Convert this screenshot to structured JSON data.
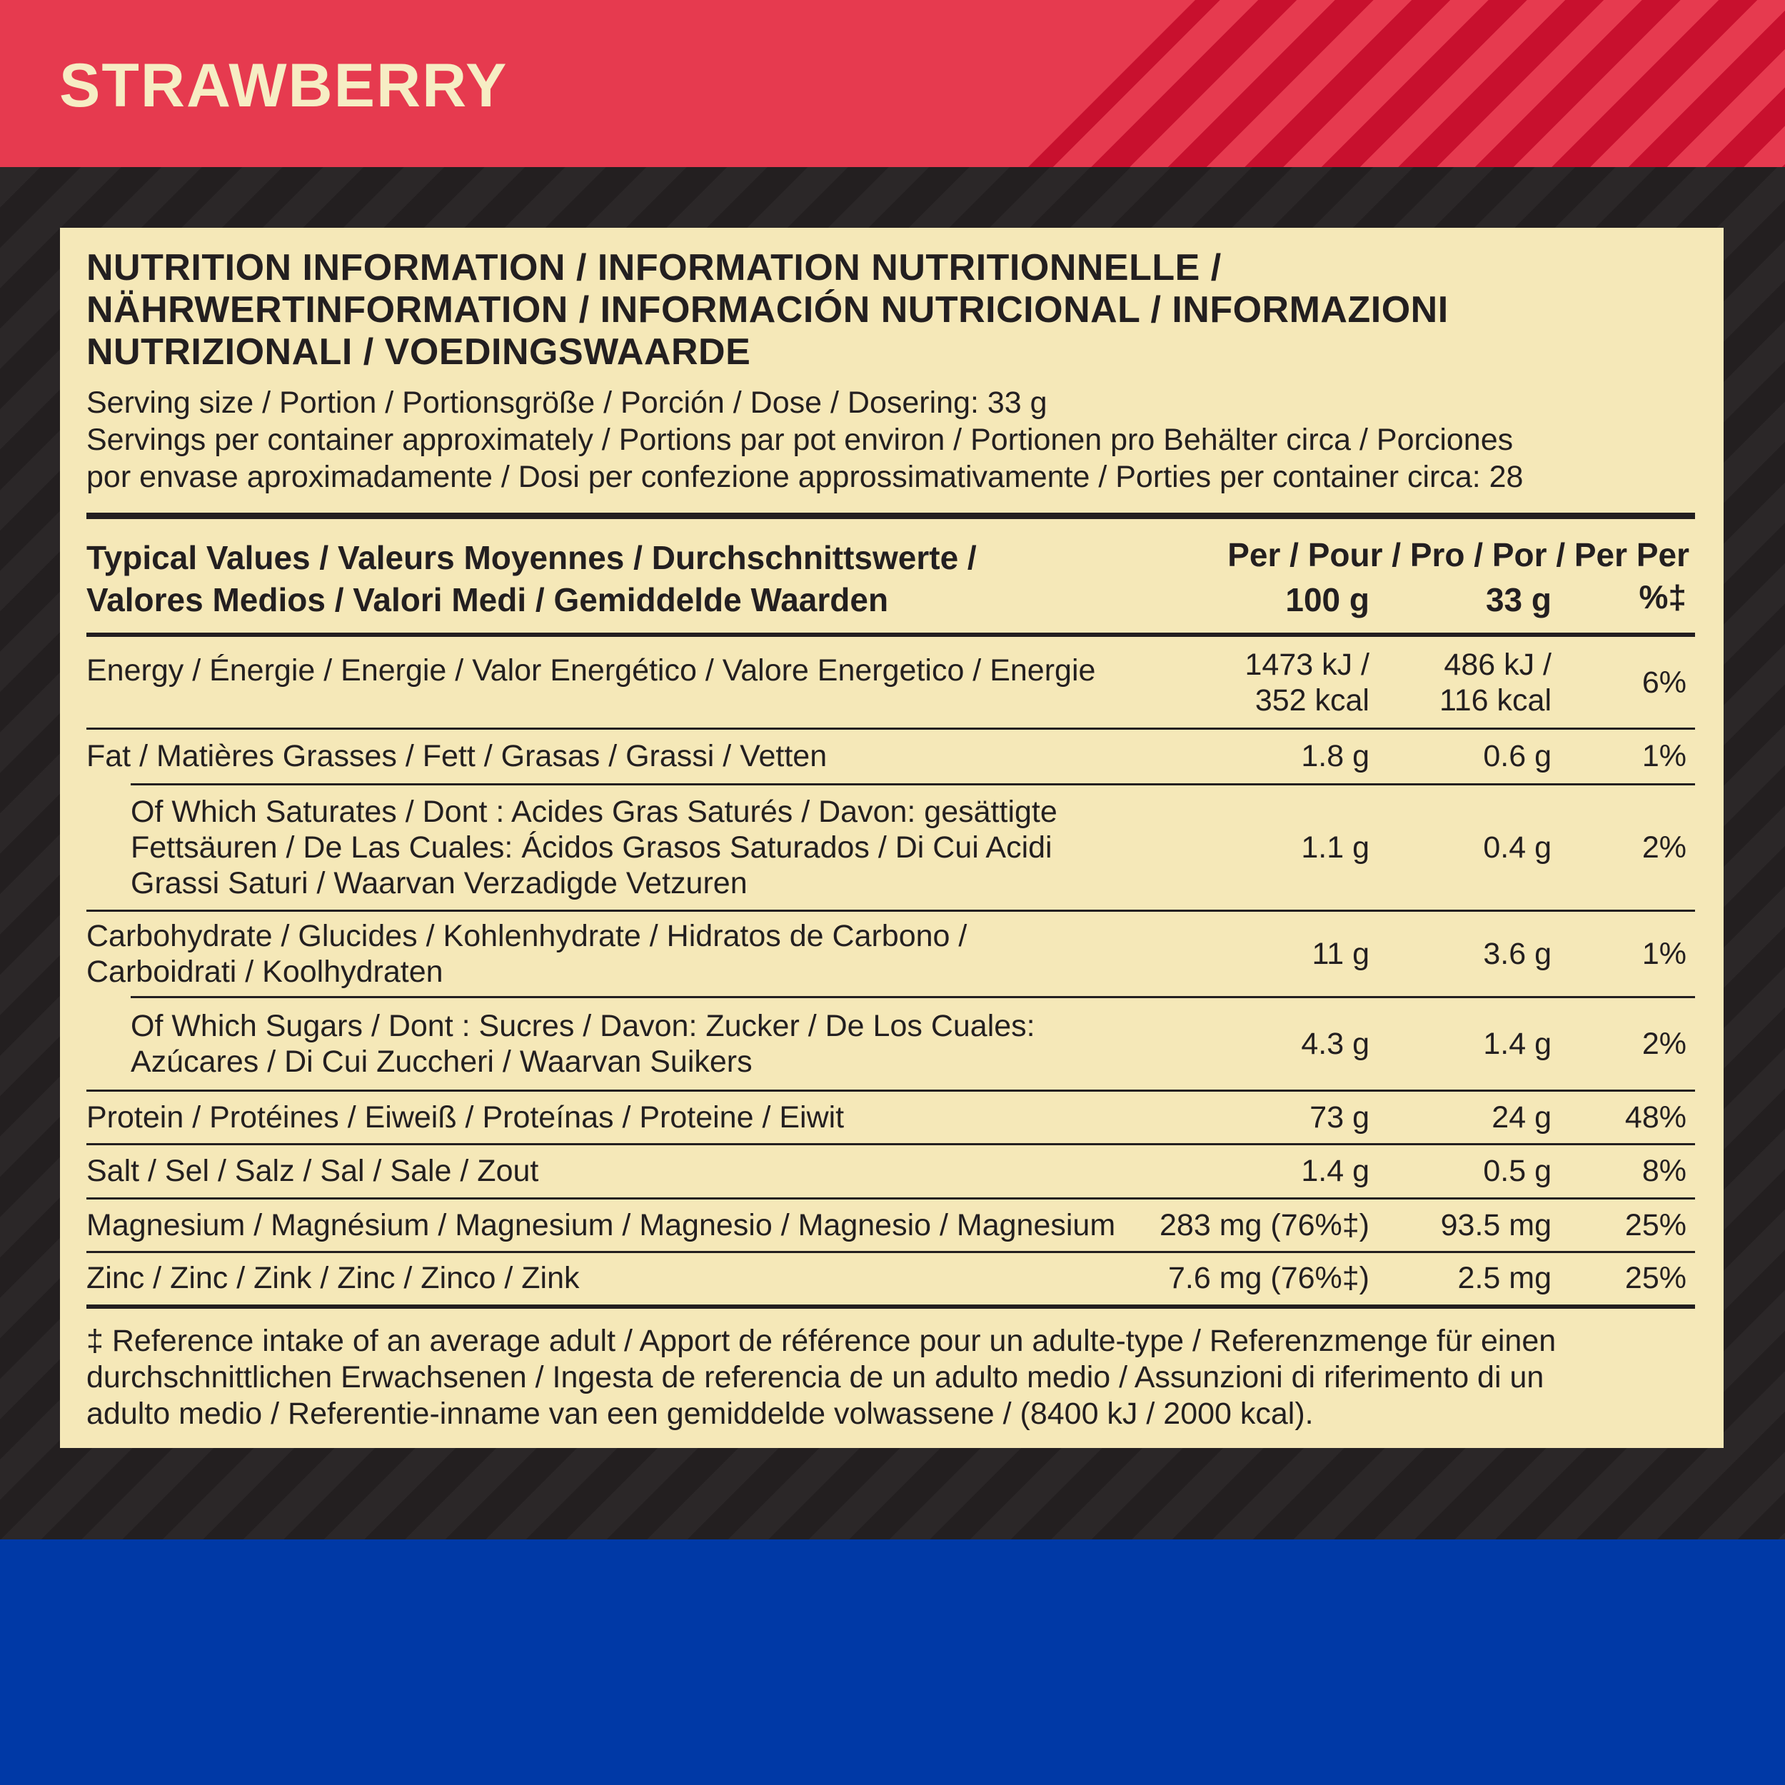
{
  "header": {
    "title": "STRAWBERRY"
  },
  "panel": {
    "heading": [
      "NUTRITION INFORMATION / INFORMATION NUTRITIONNELLE /",
      "NÄHRWERTINFORMATION / INFORMACIÓN NUTRICIONAL / INFORMAZIONI",
      "NUTRIZIONALI / VOEDINGSWAARDE"
    ],
    "serving": [
      "Serving size / Portion / Portionsgröße / Porción / Dose / Dosering: 33 g",
      "Servings per container approximately / Portions par pot environ / Portionen pro Behälter circa / Porciones",
      "por envase aproximadamente / Dosi per confezione approssimativamente / Porties per container circa: 28"
    ],
    "table": {
      "header": {
        "label": [
          "Typical Values / Valeurs Moyennes / Durchschnittswerte /",
          "Valores Medios / Valori Medi / Gemiddelde Waarden"
        ],
        "columns_top": "Per / Pour / Pro / Por / Per Per",
        "col1": "100 g",
        "col2": "33 g",
        "col3": "%‡"
      },
      "rows": [
        {
          "label": [
            "Energy / Énergie / Energie / Valor Energético / Valore Energetico / Energie"
          ],
          "per100": [
            "1473 kJ /",
            "352 kcal"
          ],
          "per33": [
            "486 kJ /",
            "116 kcal"
          ],
          "ri": [
            "6%"
          ]
        },
        {
          "label": [
            "Fat / Matières Grasses / Fett / Grasas / Grassi / Vetten"
          ],
          "per100": [
            "1.8 g"
          ],
          "per33": [
            "0.6 g"
          ],
          "ri": [
            "1%"
          ]
        },
        {
          "label": [
            "Of Which Saturates / Dont : Acides Gras Saturés / Davon: gesättigte",
            "Fettsäuren / De Las Cuales: Ácidos Grasos Saturados / Di Cui Acidi",
            "Grassi Saturi / Waarvan Verzadigde Vetzuren"
          ],
          "per100": [
            "1.1 g"
          ],
          "per33": [
            "0.4 g"
          ],
          "ri": [
            "2%"
          ]
        },
        {
          "label": [
            "Carbohydrate / Glucides / Kohlenhydrate / Hidratos de Carbono /",
            "Carboidrati / Koolhydraten"
          ],
          "per100": [
            "11 g"
          ],
          "per33": [
            "3.6 g"
          ],
          "ri": [
            "1%"
          ]
        },
        {
          "label": [
            "Of Which Sugars / Dont : Sucres / Davon: Zucker / De Los Cuales:",
            "Azúcares / Di Cui Zuccheri / Waarvan Suikers"
          ],
          "per100": [
            "4.3 g"
          ],
          "per33": [
            "1.4 g"
          ],
          "ri": [
            "2%"
          ]
        },
        {
          "label": [
            "Protein / Protéines / Eiweiß / Proteínas / Proteine / Eiwit"
          ],
          "per100": [
            "73 g"
          ],
          "per33": [
            "24 g"
          ],
          "ri": [
            "48%"
          ]
        },
        {
          "label": [
            "Salt / Sel / Salz / Sal / Sale / Zout"
          ],
          "per100": [
            "1.4 g"
          ],
          "per33": [
            "0.5 g"
          ],
          "ri": [
            "8%"
          ]
        },
        {
          "label": [
            "Magnesium / Magnésium / Magnesium / Magnesio / Magnesio / Magnesium"
          ],
          "per100": [
            "283 mg (76%‡)"
          ],
          "per33": [
            "93.5 mg"
          ],
          "ri": [
            "25%"
          ]
        },
        {
          "label": [
            "Zinc / Zinc / Zink / Zinc / Zinco / Zink"
          ],
          "per100": [
            "7.6 mg (76%‡)"
          ],
          "per33": [
            "2.5 mg"
          ],
          "ri": [
            "25%"
          ]
        }
      ]
    },
    "footnote": [
      "‡ Reference intake of an average adult / Apport de référence pour un adulte-type / Referenzmenge für einen",
      "durchschnittlichen Erwachsenen / Ingesta de referencia de un adulto medio / Assunzioni di riferimento di un",
      "adulto medio / Referentie-inname van een gemiddelde volwassene / (8400 kJ / 2000 kcal)."
    ]
  }
}
